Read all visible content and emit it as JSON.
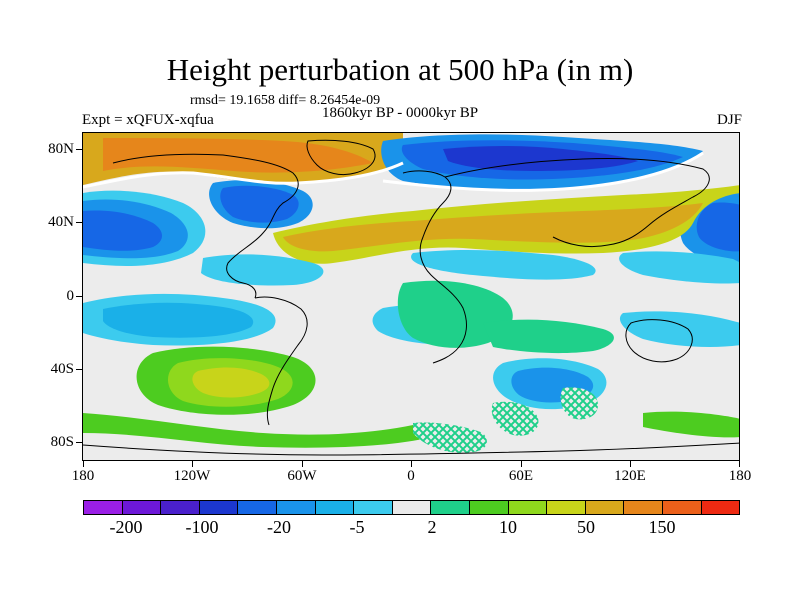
{
  "title": "Height perturbation at 500 hPa (in m)",
  "stats_text": "rmsd= 19.1658 diff= 8.26454e-09",
  "expt_text": "Expt = xQFUX-xqfua",
  "period_text": "1860kyr BP - 0000kyr BP",
  "season_text": "DJF",
  "map": {
    "lat_labels": [
      "80N",
      "40N",
      "0",
      "40S",
      "80S"
    ],
    "lon_labels": [
      "180",
      "120W",
      "60W",
      "0",
      "60E",
      "120E",
      "180"
    ],
    "land_fill": "#ececec",
    "coastline_color": "#000000"
  },
  "colorbar": {
    "colors": [
      "#9a1fe6",
      "#6d18d8",
      "#4a20cc",
      "#1c37cf",
      "#1667e6",
      "#1a93ea",
      "#1ab0e8",
      "#3ccbee",
      "#eaeaea",
      "#1fd08a",
      "#4dcc20",
      "#8fd81d",
      "#c8d41a",
      "#d8a81c",
      "#e6861b",
      "#ec601a",
      "#ee2a12"
    ],
    "labels": [
      "-200",
      "-100",
      "-20",
      "-5",
      "2",
      "10",
      "50",
      "150"
    ],
    "legend_levels": "-200 -100 -20 -5 2 10 50 150"
  }
}
